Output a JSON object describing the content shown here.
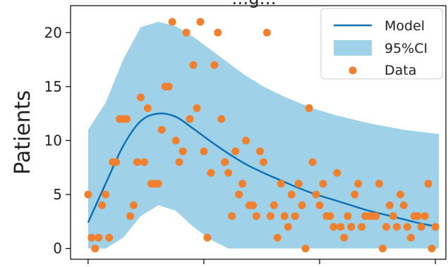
{
  "chart_data": {
    "type": "line",
    "title": "…g…",
    "ylabel": "Patients",
    "xlabel": "",
    "ylim": [
      -1,
      22.5
    ],
    "xlim": [
      -5,
      102
    ],
    "y_ticks": [
      0,
      5,
      10,
      15,
      20
    ],
    "x_tick_values": [
      0,
      33,
      66,
      99
    ],
    "legend_location": "top-right",
    "grid": false,
    "colors": {
      "model": "#0d72b5",
      "ci_band": "#9fd1e8",
      "data_points": "#f07f2e"
    },
    "series": [
      {
        "name": "Model",
        "kind": "line",
        "x": [
          0,
          5,
          10,
          15,
          20,
          25,
          30,
          35,
          40,
          45,
          50,
          55,
          60,
          65,
          70,
          75,
          80,
          85,
          90,
          95,
          100
        ],
        "y": [
          2.4,
          6.0,
          9.5,
          11.8,
          12.5,
          12.2,
          11.1,
          9.9,
          8.8,
          7.8,
          7.0,
          6.3,
          5.6,
          5.0,
          4.5,
          4.0,
          3.5,
          3.1,
          2.7,
          2.3,
          2.0
        ]
      },
      {
        "name": "95%CI",
        "kind": "band",
        "x": [
          0,
          5,
          10,
          15,
          20,
          25,
          30,
          35,
          40,
          45,
          50,
          55,
          60,
          65,
          70,
          75,
          80,
          85,
          90,
          95,
          100
        ],
        "lower": [
          0,
          0,
          1.0,
          3.0,
          4.0,
          3.5,
          2.0,
          0.8,
          0,
          0,
          0,
          0,
          0,
          0,
          0,
          0,
          0,
          0,
          0,
          0,
          0
        ],
        "upper": [
          11.0,
          13.5,
          17.5,
          20.5,
          21.0,
          20.6,
          19.6,
          18.4,
          17.2,
          16.0,
          15.0,
          14.2,
          13.5,
          12.9,
          12.4,
          12.0,
          11.6,
          11.3,
          11.0,
          10.8,
          10.6
        ]
      },
      {
        "name": "Data",
        "kind": "scatter",
        "x": [
          0,
          1,
          2,
          3,
          4,
          5,
          6,
          7,
          8,
          9,
          10,
          11,
          12,
          13,
          14,
          15,
          16,
          17,
          18,
          19,
          20,
          21,
          22,
          23,
          24,
          25,
          26,
          27,
          28,
          29,
          30,
          31,
          32,
          33,
          34,
          35,
          36,
          37,
          38,
          39,
          40,
          41,
          42,
          43,
          44,
          45,
          46,
          47,
          48,
          49,
          50,
          51,
          52,
          53,
          54,
          55,
          56,
          57,
          58,
          59,
          60,
          61,
          62,
          63,
          64,
          65,
          66,
          67,
          68,
          69,
          70,
          71,
          72,
          73,
          74,
          75,
          76,
          77,
          78,
          79,
          80,
          81,
          82,
          83,
          84,
          85,
          86,
          87,
          88,
          89,
          90,
          91,
          92,
          93,
          94,
          95,
          96,
          97,
          98,
          99
        ],
        "y": [
          5,
          1,
          0,
          1,
          4,
          5,
          1,
          8,
          8,
          12,
          12,
          12,
          3,
          4,
          8,
          14,
          8,
          13,
          6,
          6,
          6,
          11,
          15,
          15,
          21,
          10,
          8,
          9,
          20,
          12,
          17,
          13,
          21,
          9,
          1,
          7,
          17,
          20,
          12,
          8,
          7,
          3,
          9,
          5,
          6,
          10,
          4,
          4,
          3,
          9,
          8,
          20,
          3,
          4,
          1,
          6,
          3,
          2,
          5,
          3,
          6,
          4,
          0,
          13,
          8,
          5,
          4,
          6,
          3,
          3,
          2,
          7,
          2,
          1,
          3,
          2,
          5,
          6,
          2,
          3,
          3,
          3,
          3,
          6,
          0,
          2,
          4,
          3,
          2,
          5,
          4,
          2,
          1,
          3,
          3,
          2,
          3,
          6,
          0,
          2
        ]
      }
    ]
  }
}
